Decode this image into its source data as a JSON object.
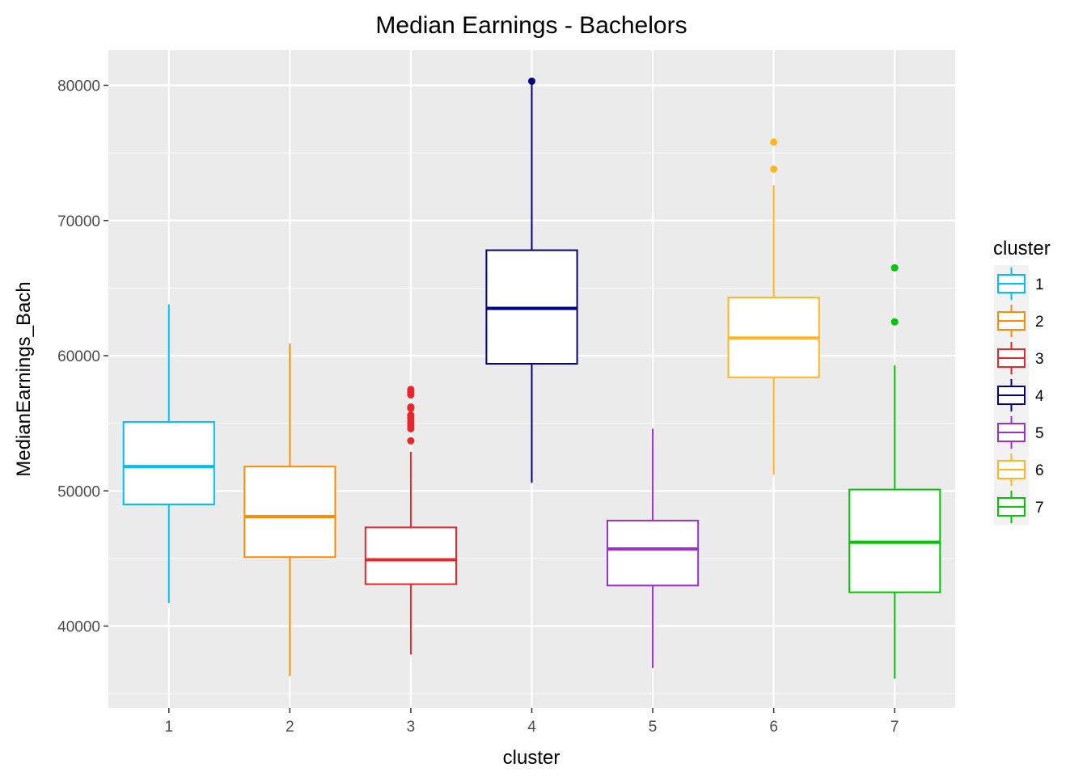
{
  "chart_data": {
    "type": "box",
    "title": "Median Earnings - Bachelors",
    "xlabel": "cluster",
    "ylabel": "MedianEarnings_Bach",
    "ylim": [
      34000,
      82500
    ],
    "yticks": [
      40000,
      50000,
      60000,
      70000,
      80000
    ],
    "categories": [
      "1",
      "2",
      "3",
      "4",
      "5",
      "6",
      "7"
    ],
    "grid": true,
    "legend": {
      "title": "cluster",
      "position": "right",
      "entries": [
        "1",
        "2",
        "3",
        "4",
        "5",
        "6",
        "7"
      ]
    },
    "series": [
      {
        "category": "1",
        "color": "#00bfff",
        "whisker_low": 41700,
        "q1": 49000,
        "median": 51800,
        "q3": 55100,
        "whisker_high": 63800,
        "outliers": []
      },
      {
        "category": "2",
        "color": "#ff8c00",
        "whisker_low": 36300,
        "q1": 45100,
        "median": 48100,
        "q3": 51800,
        "whisker_high": 60900,
        "outliers": []
      },
      {
        "category": "3",
        "color": "#e8262a",
        "whisker_low": 37900,
        "q1": 43100,
        "median": 44900,
        "q3": 47300,
        "whisker_high": 52900,
        "outliers": [
          53700,
          54600,
          54800,
          55000,
          55200,
          55400,
          55600,
          56100,
          56200,
          57100,
          57300,
          57500
        ]
      },
      {
        "category": "4",
        "color": "#000080",
        "whisker_low": 50600,
        "q1": 59400,
        "median": 63500,
        "q3": 67800,
        "whisker_high": 80200,
        "outliers": [
          80300
        ]
      },
      {
        "category": "5",
        "color": "#9932cc",
        "whisker_low": 36900,
        "q1": 43000,
        "median": 45700,
        "q3": 47800,
        "whisker_high": 54600,
        "outliers": []
      },
      {
        "category": "6",
        "color": "#ffb61e",
        "whisker_low": 51200,
        "q1": 58400,
        "median": 61300,
        "q3": 64300,
        "whisker_high": 72600,
        "outliers": [
          73800,
          75800
        ]
      },
      {
        "category": "7",
        "color": "#00c800",
        "whisker_low": 36100,
        "q1": 42500,
        "median": 46200,
        "q3": 50100,
        "whisker_high": 59300,
        "outliers": [
          62500,
          66500
        ]
      }
    ]
  }
}
